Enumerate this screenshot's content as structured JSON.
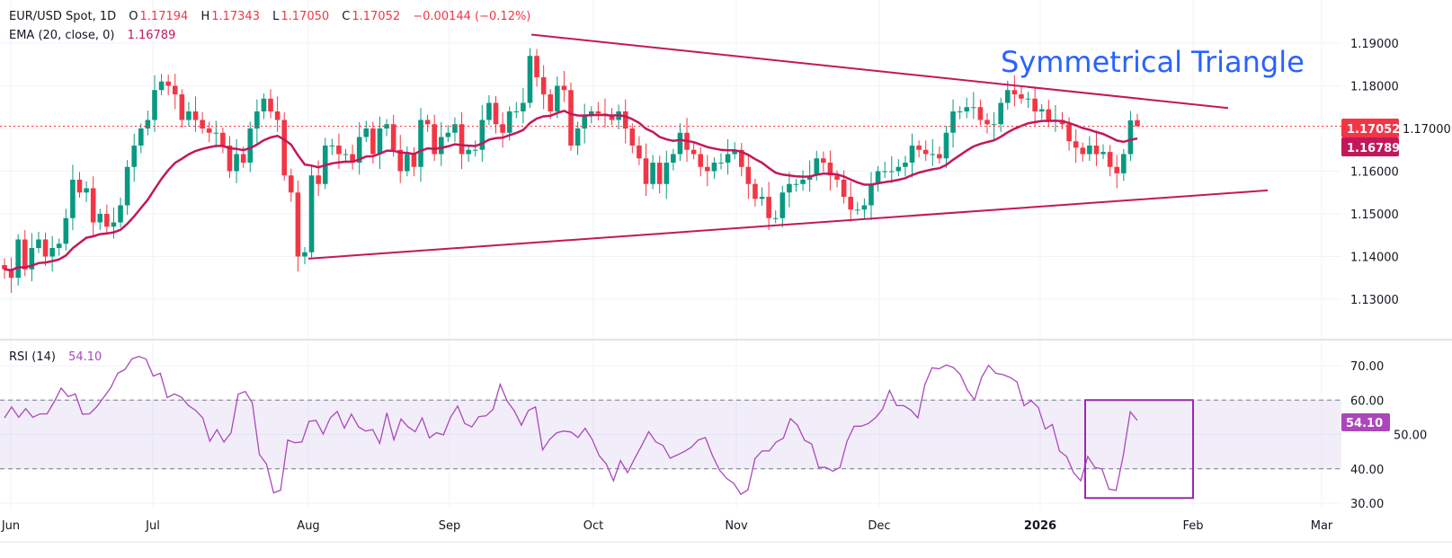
{
  "header": {
    "symbol": "EUR/USD Spot, 1D",
    "open_label": "O",
    "open": "1.17194",
    "high_label": "H",
    "high": "1.17343",
    "low_label": "L",
    "low": "1.17050",
    "close_label": "C",
    "close": "1.17052",
    "change": "−0.00144 (−0.12%)",
    "ema_label": "EMA (20, close, 0)",
    "ema_value": "1.16789",
    "rsi_label": "RSI (14)",
    "rsi_value": "54.10"
  },
  "colors": {
    "up": "#089981",
    "down": "#f23645",
    "ema": "#c2185b",
    "trendline": "#c2185b",
    "rsi": "#ab47bc",
    "annotation": "#2962ff",
    "price_badge": "#f23645",
    "ema_badge": "#c2185b",
    "rsi_badge": "#ab47bc"
  },
  "chart_data": [
    {
      "type": "candlestick",
      "title": "EUR/USD Spot, 1D",
      "ylim": [
        1.125,
        1.195
      ],
      "y_ticks": [
        "1.19000",
        "1.18000",
        "1.17000",
        "1.16000",
        "1.15000",
        "1.14000",
        "1.13000"
      ],
      "x_ticks": [
        "Jun",
        "Jul",
        "Aug",
        "Sep",
        "Oct",
        "Nov",
        "Dec",
        "2026",
        "Feb",
        "Mar"
      ],
      "grid": true,
      "last_bar": {
        "open": 1.17194,
        "high": 1.17343,
        "low": 1.1705,
        "close": 1.17052
      },
      "closes": [
        1.137,
        1.135,
        1.144,
        1.137,
        1.142,
        1.144,
        1.14,
        1.142,
        1.143,
        1.149,
        1.158,
        1.155,
        1.156,
        1.148,
        1.15,
        1.147,
        1.148,
        1.152,
        1.161,
        1.166,
        1.17,
        1.172,
        1.179,
        1.181,
        1.18,
        1.178,
        1.172,
        1.174,
        1.172,
        1.17,
        1.169,
        1.169,
        1.166,
        1.16,
        1.164,
        1.162,
        1.17,
        1.174,
        1.177,
        1.174,
        1.172,
        1.159,
        1.155,
        1.14,
        1.141,
        1.159,
        1.157,
        1.166,
        1.166,
        1.164,
        1.164,
        1.162,
        1.168,
        1.17,
        1.164,
        1.17,
        1.171,
        1.165,
        1.16,
        1.164,
        1.161,
        1.172,
        1.171,
        1.164,
        1.168,
        1.169,
        1.171,
        1.164,
        1.165,
        1.165,
        1.172,
        1.176,
        1.171,
        1.169,
        1.174,
        1.174,
        1.176,
        1.187,
        1.182,
        1.178,
        1.174,
        1.18,
        1.179,
        1.166,
        1.17,
        1.173,
        1.174,
        1.1735,
        1.173,
        1.172,
        1.174,
        1.17,
        1.166,
        1.163,
        1.157,
        1.162,
        1.157,
        1.162,
        1.164,
        1.169,
        1.165,
        1.164,
        1.161,
        1.16,
        1.162,
        1.162,
        1.164,
        1.165,
        1.161,
        1.157,
        1.1535,
        1.154,
        1.149,
        1.149,
        1.155,
        1.157,
        1.157,
        1.158,
        1.159,
        1.163,
        1.162,
        1.159,
        1.158,
        1.154,
        1.151,
        1.151,
        1.152,
        1.157,
        1.16,
        1.16,
        1.16,
        1.161,
        1.162,
        1.166,
        1.165,
        1.164,
        1.164,
        1.163,
        1.169,
        1.174,
        1.174,
        1.175,
        1.175,
        1.172,
        1.171,
        1.171,
        1.176,
        1.179,
        1.178,
        1.177,
        1.177,
        1.174,
        1.1745,
        1.172,
        1.172,
        1.171,
        1.167,
        1.1655,
        1.164,
        1.166,
        1.164,
        1.1645,
        1.161,
        1.1595,
        1.164,
        1.1719,
        1.17052
      ],
      "ema_period": 20,
      "price_badges": [
        "1.17052",
        "1.16789"
      ],
      "annotations": {
        "text": "Symmetrical Triangle",
        "upper_trendline": {
          "from_price": 1.192,
          "to_price": 1.1748
        },
        "lower_trendline": {
          "from_price": 1.1395,
          "to_price": 1.1555
        }
      }
    },
    {
      "type": "line",
      "title": "RSI (14)",
      "ylim": [
        27,
        75
      ],
      "y_ticks": [
        "70.00",
        "60.00",
        "50.00",
        "40.00",
        "30.00"
      ],
      "band": [
        40,
        60
      ],
      "last_value": "54.10",
      "values": [
        54.8,
        58,
        55,
        57.5,
        55,
        56,
        56,
        59.4,
        63.5,
        61,
        61.8,
        55.9,
        56,
        58,
        60.8,
        63.6,
        67.8,
        68.9,
        72,
        72.7,
        71.9,
        67,
        67.8,
        60.7,
        61.8,
        60.8,
        58.4,
        57,
        54.8,
        48,
        51.4,
        47.8,
        50.5,
        61.7,
        62.5,
        59.2,
        44.2,
        41.4,
        33,
        33.8,
        48.4,
        47.6,
        47.8,
        53.8,
        54.1,
        50.1,
        54.8,
        56.7,
        51.8,
        55.9,
        52.2,
        51,
        51.4,
        47.4,
        56.3,
        48.4,
        54.5,
        52.2,
        50.8,
        54.8,
        49,
        50.5,
        49.9,
        55,
        58.3,
        53.2,
        52.2,
        55.2,
        55.4,
        57.3,
        64.6,
        59.7,
        56.9,
        52.7,
        57,
        58,
        45.5,
        48.6,
        50.5,
        51,
        50.7,
        49.1,
        51.8,
        48.6,
        43.8,
        41.4,
        36.5,
        42.4,
        38.9,
        43,
        46.8,
        50.8,
        47.8,
        46.8,
        43.1,
        44,
        45,
        46.3,
        48.4,
        49.1,
        43.8,
        39.6,
        37.2,
        35.8,
        32.6,
        33.9,
        43,
        45.2,
        45.2,
        47.8,
        48.9,
        54.6,
        52.7,
        48.3,
        47.2,
        40.4,
        40.4,
        39.3,
        40.4,
        48,
        52.4,
        52.4,
        53.2,
        54.8,
        57.3,
        62.8,
        58.4,
        58.4,
        57.1,
        54.8,
        64.6,
        69.4,
        69.1,
        70.2,
        69.5,
        67.4,
        62.9,
        60.1,
        66.6,
        70.1,
        67.8,
        67.4,
        66.6,
        65.3,
        58.4,
        59.8,
        57.9,
        51.6,
        52.9,
        45.2,
        43.6,
        38.9,
        36.5,
        43.6,
        40.4,
        40,
        34.1,
        33.7,
        43.8,
        56.6,
        54.1
      ],
      "highlight_box": {
        "from_value": 31.5,
        "to_value": 60
      }
    }
  ]
}
